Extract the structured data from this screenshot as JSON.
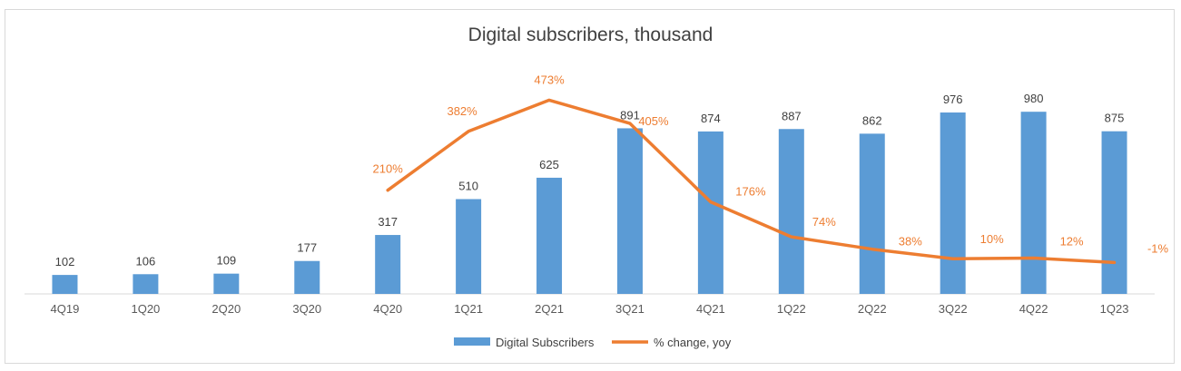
{
  "chart_data": {
    "type": "bar",
    "title": "Digital subscribers, thousand",
    "categories": [
      "4Q19",
      "1Q20",
      "2Q20",
      "3Q20",
      "4Q20",
      "1Q21",
      "2Q21",
      "3Q21",
      "4Q21",
      "1Q22",
      "2Q22",
      "3Q22",
      "4Q22",
      "1Q23"
    ],
    "series": [
      {
        "name": "Digital Subscribers",
        "type": "bar",
        "values": [
          102,
          106,
          109,
          177,
          317,
          510,
          625,
          891,
          874,
          887,
          862,
          976,
          980,
          875
        ],
        "labels": [
          "102",
          "106",
          "109",
          "177",
          "317",
          "510",
          "625",
          "891",
          "874",
          "887",
          "862",
          "976",
          "980",
          "875"
        ]
      },
      {
        "name": "% change, yoy",
        "type": "line",
        "values": [
          null,
          null,
          null,
          null,
          210,
          382,
          473,
          405,
          176,
          74,
          38,
          10,
          12,
          -1
        ],
        "labels": [
          "",
          "",
          "",
          "",
          "210%",
          "382%",
          "473%",
          "405%",
          "176%",
          "74%",
          "38%",
          "10%",
          "12%",
          "-1%"
        ]
      }
    ],
    "legend_position": "bottom",
    "grid": false,
    "colors": {
      "bars": "#5b9bd5",
      "line": "#ed7d31"
    }
  }
}
